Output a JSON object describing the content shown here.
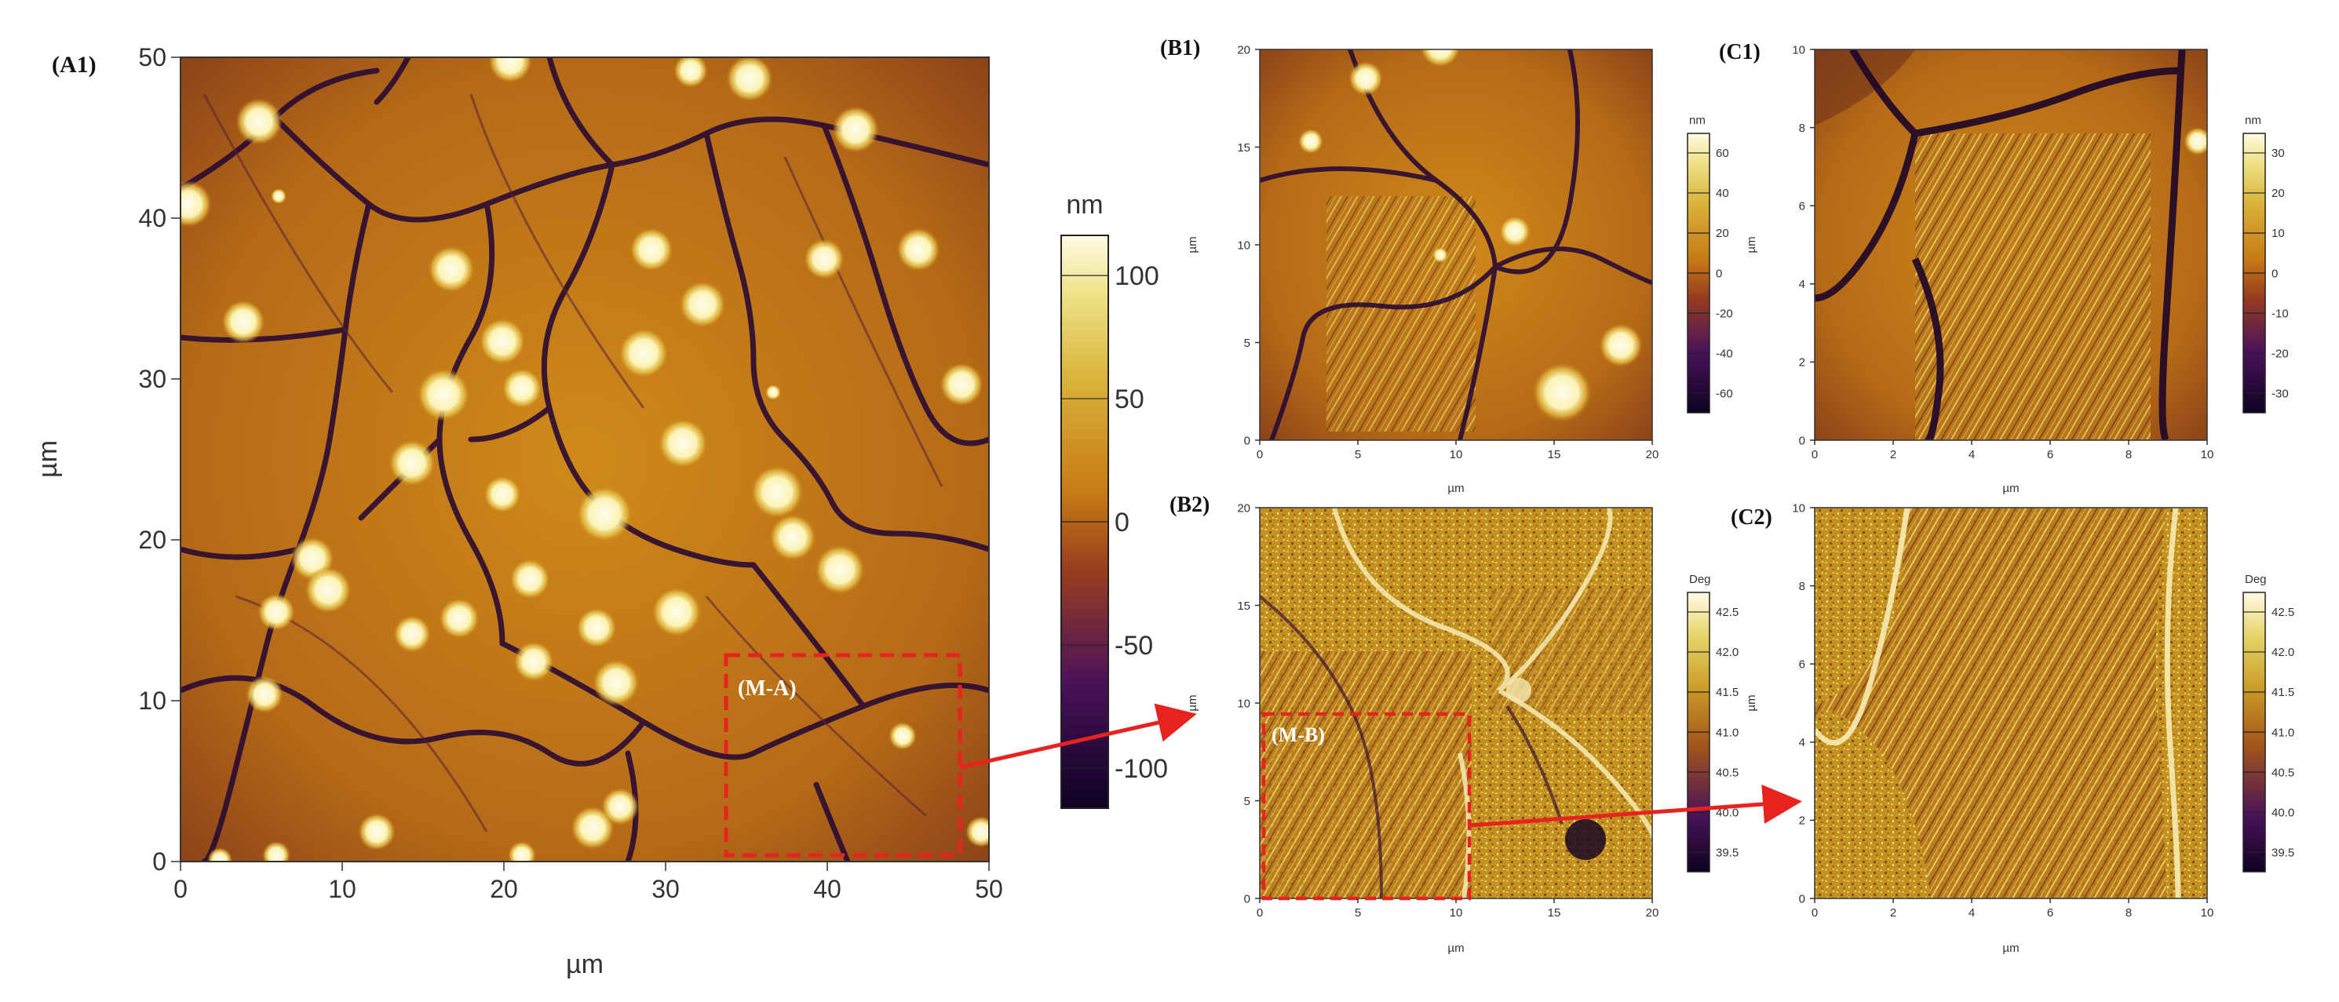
{
  "figure": {
    "panels": [
      {
        "id": "A1",
        "label": "(A1)",
        "xlabel": "µm",
        "ylabel": "µm",
        "xticks": [
          "0",
          "10",
          "20",
          "30",
          "40",
          "50"
        ],
        "yticks": [
          "0",
          "10",
          "20",
          "30",
          "40",
          "50"
        ],
        "colorbar": {
          "unit": "nm",
          "ticks": [
            "100",
            "50",
            "0",
            "-50",
            "-100"
          ],
          "scheme": "height"
        },
        "roi": {
          "label": "(M-A)",
          "color": "#e8231f"
        }
      },
      {
        "id": "B1",
        "label": "(B1)",
        "xlabel": "µm",
        "ylabel": "µm",
        "xticks": [
          "0",
          "5",
          "10",
          "15",
          "20"
        ],
        "yticks": [
          "0",
          "5",
          "10",
          "15",
          "20"
        ],
        "colorbar": {
          "unit": "nm",
          "ticks": [
            "60",
            "40",
            "20",
            "0",
            "-20",
            "-40",
            "-60"
          ],
          "scheme": "height"
        }
      },
      {
        "id": "C1",
        "label": "(C1)",
        "xlabel": "µm",
        "ylabel": "µm",
        "xticks": [
          "0",
          "2",
          "4",
          "6",
          "8",
          "10"
        ],
        "yticks": [
          "0",
          "2",
          "4",
          "6",
          "8",
          "10"
        ],
        "colorbar": {
          "unit": "nm",
          "ticks": [
            "30",
            "20",
            "10",
            "0",
            "-10",
            "-20",
            "-30"
          ],
          "scheme": "height"
        }
      },
      {
        "id": "B2",
        "label": "(B2)",
        "xlabel": "µm",
        "ylabel": "µm",
        "xticks": [
          "0",
          "5",
          "10",
          "15",
          "20"
        ],
        "yticks": [
          "0",
          "5",
          "10",
          "15",
          "20"
        ],
        "colorbar": {
          "unit": "Deg",
          "ticks": [
            "42.5",
            "42.0",
            "41.5",
            "41.0",
            "40.5",
            "40.0",
            "39.5"
          ],
          "scheme": "phase"
        },
        "roi": {
          "label": "(M-B)",
          "color": "#e8231f"
        }
      },
      {
        "id": "C2",
        "label": "(C2)",
        "xlabel": "µm",
        "ylabel": "µm",
        "xticks": [
          "0",
          "2",
          "4",
          "6",
          "8",
          "10"
        ],
        "yticks": [
          "0",
          "2",
          "4",
          "6",
          "8",
          "10"
        ],
        "colorbar": {
          "unit": "Deg",
          "ticks": [
            "42.5",
            "42.0",
            "41.5",
            "41.0",
            "40.5",
            "40.0",
            "39.5"
          ],
          "scheme": "phase"
        }
      }
    ],
    "arrow_color": "#e8231f"
  }
}
